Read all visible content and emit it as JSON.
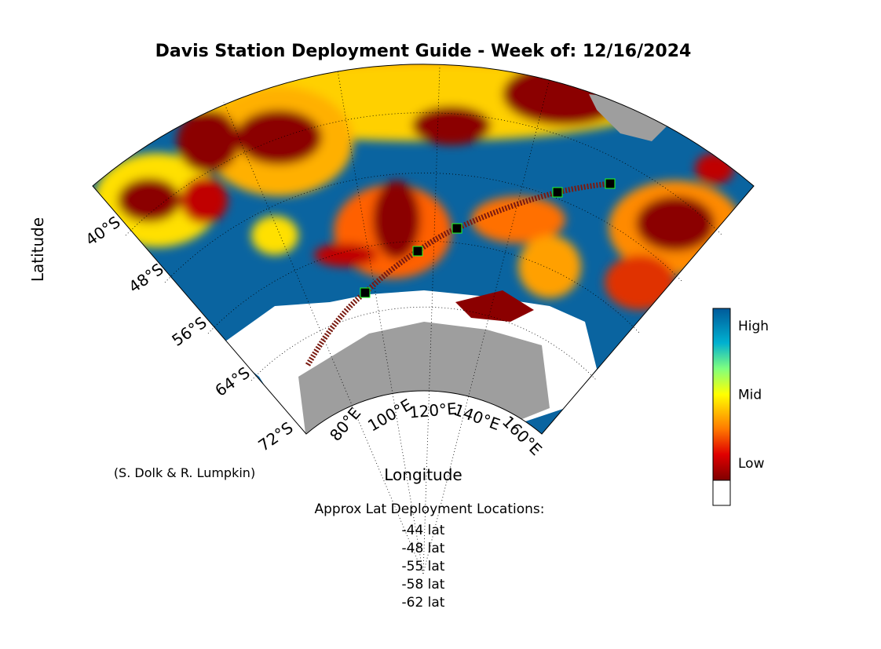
{
  "title": "Davis Station Deployment Guide - Week of: 12/16/2024",
  "axes": {
    "y_label": "Latitude",
    "x_label": "Longitude",
    "lat_labels": [
      "40°S",
      "48°S",
      "56°S",
      "64°S",
      "72°S"
    ],
    "lon_labels": [
      "80°E",
      "100°E",
      "120°E",
      "140°E",
      "160°E"
    ]
  },
  "colorbar": {
    "labels": [
      "High",
      "Mid",
      "Low"
    ]
  },
  "credit": "(S. Dolk & R. Lumpkin)",
  "deployment": {
    "heading": "Approx Lat Deployment Locations:",
    "items": [
      "-44 lat",
      "-48 lat",
      "-55 lat",
      "-58 lat",
      "-62 lat"
    ]
  }
}
